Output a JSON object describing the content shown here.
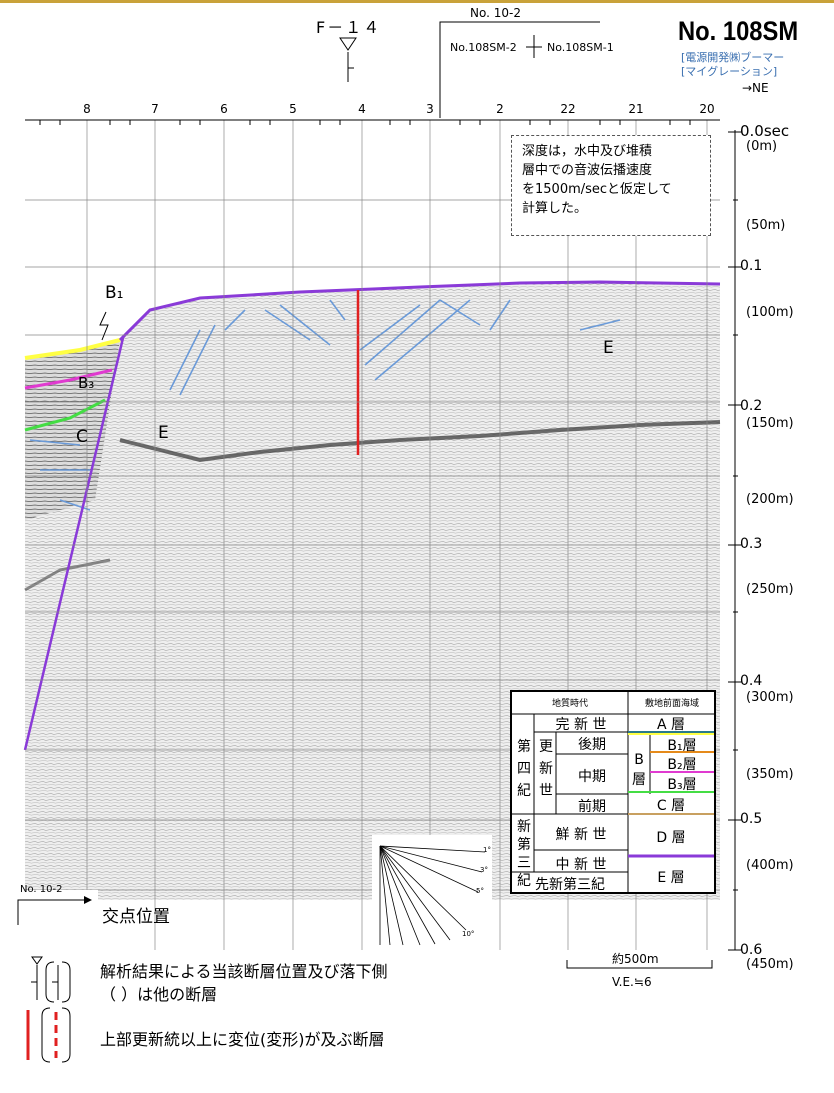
{
  "header": {
    "fault_name": "F－１４",
    "crossing_line": "No. 10-2",
    "left_line": "No.108SM-2",
    "right_line": "No.108SM-1",
    "title": "No. 108SM",
    "subtitle_1": "[電源開発㈱ブーマー",
    "subtitle_2": "[マイグレーション]",
    "direction": "→NE"
  },
  "trace_numbers": [
    "8",
    "7",
    "6",
    "5",
    "4",
    "3",
    "2",
    "22",
    "21",
    "20"
  ],
  "depth_scale": {
    "seconds": [
      "0.0sec",
      "0.1",
      "0.2",
      "0.3",
      "0.4",
      "0.5",
      "0.6"
    ],
    "meters": [
      "(0m)",
      "(50m)",
      "(100m)",
      "(150m)",
      "(200m)",
      "(250m)",
      "(300m)",
      "(350m)",
      "(400m)",
      "(450m)"
    ]
  },
  "note": {
    "lines": [
      "深度は，水中及び堆積",
      "層中での音波伝播速度",
      "を1500m/secと仮定して",
      "計算した。"
    ]
  },
  "section_labels": {
    "b1": "B₁",
    "b3": "B₃",
    "c": "C",
    "e_left": "E",
    "e_right": "E"
  },
  "colors": {
    "a_layer": "#2a7a8a",
    "b1_layer": "#ffff44",
    "b2_layer": "#e58a1a",
    "b3_layer": "#e03ad0",
    "c_layer": "#44dd44",
    "d_layer": "#c8a060",
    "e_layer": "#8a3ad8",
    "fault_active": "#e02020",
    "seafloor": "#8a3ad8",
    "reflector_blue": "#6a9ad8"
  },
  "strat_table": {
    "header_age": "地質時代",
    "header_area": "敷地前面海域",
    "holocene": "完 新 世",
    "quaternary": "第四紀",
    "pleistocene": "更新世",
    "late": "後期",
    "middle": "中期",
    "early": "前期",
    "b_group": "B層",
    "neogene": "新第三紀",
    "pliocene": "鮮 新 世",
    "miocene": "中 新 世",
    "pre_neogene": "先新第三紀",
    "a": "A 層",
    "b1": "B₁層",
    "b2": "B₂層",
    "b3": "B₃層",
    "c": "C 層",
    "d": "D 層",
    "e": "E 層"
  },
  "dip_fan": {
    "labels": [
      "1°",
      "3°",
      "5°",
      "10°"
    ]
  },
  "crossing_legend": {
    "line": "No. 10-2",
    "label": "交点位置"
  },
  "scale_bar": {
    "length": "約500m",
    "vertical_exaggeration": "V.E.≒6"
  },
  "legend": {
    "fault_text_1": "解析結果による当該断層位置及び落下側",
    "fault_text_2": "（ ）は他の断層",
    "active_text": "上部更新統以上に変位(変形)が及ぶ断層"
  }
}
